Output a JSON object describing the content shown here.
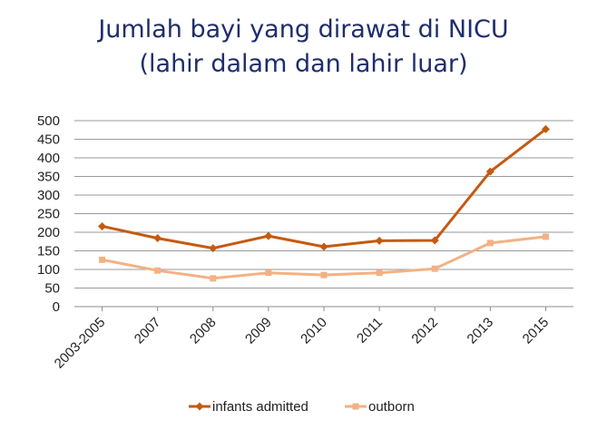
{
  "title_line1": "Jumlah bayi yang dirawat di NICU",
  "title_line2": "(lahir dalam dan lahir luar)",
  "chart_data": {
    "type": "line",
    "title": "Jumlah bayi yang dirawat di NICU (lahir dalam dan lahir luar)",
    "categories": [
      "2003-2005",
      "2007",
      "2008",
      "2009",
      "2010",
      "2011",
      "2012",
      "2013",
      "2015"
    ],
    "series": [
      {
        "name": "infants admitted",
        "color": "#c55a11",
        "marker": "diamond",
        "values": [
          216,
          184,
          157,
          190,
          161,
          177,
          178,
          363,
          477
        ]
      },
      {
        "name": "outborn",
        "color": "#f4b183",
        "marker": "square",
        "values": [
          126,
          97,
          76,
          91,
          85,
          91,
          102,
          171,
          188
        ]
      }
    ],
    "y_ticks": [
      0,
      50,
      100,
      150,
      200,
      250,
      300,
      350,
      400,
      450,
      500
    ],
    "ylim": [
      0,
      500
    ],
    "grid": true,
    "legend_position": "bottom",
    "xlabel": "",
    "ylabel": ""
  }
}
